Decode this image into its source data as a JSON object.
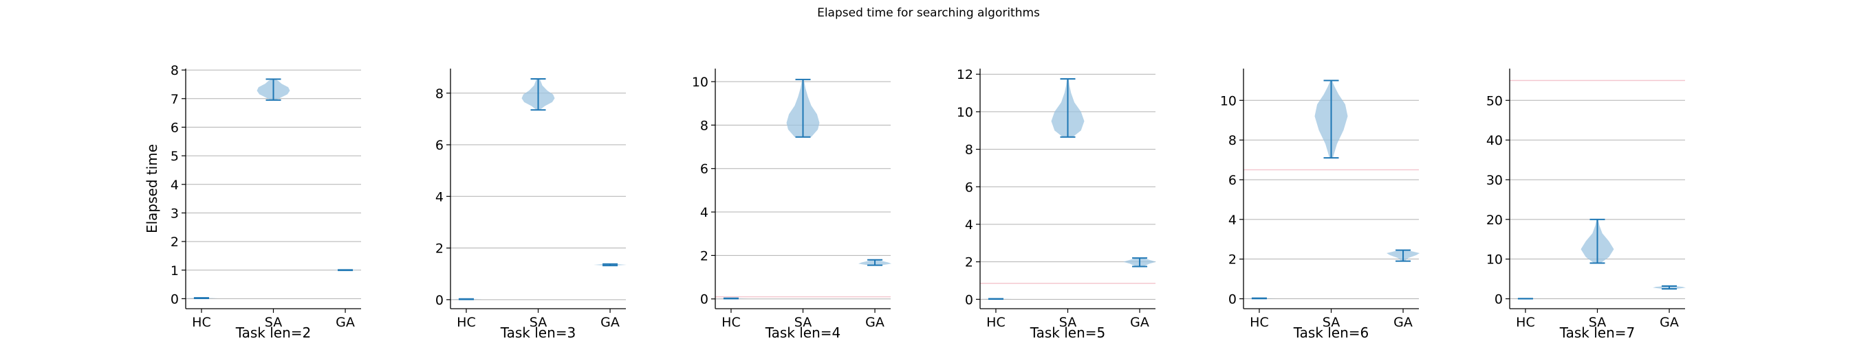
{
  "figure": {
    "title": "Elapsed time for searching algorithms"
  },
  "colors": {
    "violin_fill": "#9ec4e0",
    "violin_line": "#1f77b4",
    "grid": "#b0b0b0",
    "ref_line": "#f4c7cf"
  },
  "chart_data": [
    {
      "type": "violin",
      "xlabel": "Task len=2",
      "ylabel": "Elapsed time",
      "categories": [
        "HC",
        "SA",
        "GA"
      ],
      "ylim": [
        -0.35,
        8.05
      ],
      "yticks": [
        0,
        1,
        2,
        3,
        4,
        5,
        6,
        7,
        8
      ],
      "grid": true,
      "ref_lines": [],
      "violins": [
        {
          "category": "HC",
          "min": 0.01,
          "max": 0.03,
          "shape": [
            [
              0.01,
              0.3
            ],
            [
              0.02,
              1.0
            ],
            [
              0.03,
              0.3
            ]
          ]
        },
        {
          "category": "SA",
          "min": 6.95,
          "max": 7.68,
          "shape": [
            [
              6.95,
              0.15
            ],
            [
              7.05,
              0.5
            ],
            [
              7.15,
              0.85
            ],
            [
              7.28,
              1.0
            ],
            [
              7.4,
              0.9
            ],
            [
              7.52,
              0.5
            ],
            [
              7.62,
              0.3
            ],
            [
              7.68,
              0.1
            ]
          ]
        },
        {
          "category": "GA",
          "min": 0.99,
          "max": 1.01,
          "shape": [
            [
              0.99,
              0.3
            ],
            [
              1.0,
              1.0
            ],
            [
              1.01,
              0.3
            ]
          ]
        }
      ]
    },
    {
      "type": "violin",
      "xlabel": "Task len=3",
      "ylabel": "",
      "categories": [
        "HC",
        "SA",
        "GA"
      ],
      "ylim": [
        -0.35,
        8.95
      ],
      "yticks": [
        0,
        2,
        4,
        6,
        8
      ],
      "grid": true,
      "ref_lines": [],
      "violins": [
        {
          "category": "HC",
          "min": 0.01,
          "max": 0.03,
          "shape": [
            [
              0.01,
              0.3
            ],
            [
              0.02,
              1.0
            ],
            [
              0.03,
              0.3
            ]
          ]
        },
        {
          "category": "SA",
          "min": 7.35,
          "max": 8.55,
          "shape": [
            [
              7.35,
              0.1
            ],
            [
              7.5,
              0.4
            ],
            [
              7.65,
              0.85
            ],
            [
              7.8,
              1.0
            ],
            [
              7.95,
              0.9
            ],
            [
              8.1,
              0.55
            ],
            [
              8.3,
              0.25
            ],
            [
              8.55,
              0.1
            ]
          ]
        },
        {
          "category": "GA",
          "min": 1.32,
          "max": 1.38,
          "shape": [
            [
              1.32,
              0.3
            ],
            [
              1.35,
              1.0
            ],
            [
              1.38,
              0.3
            ]
          ]
        }
      ]
    },
    {
      "type": "violin",
      "xlabel": "Task len=4",
      "ylabel": "",
      "categories": [
        "HC",
        "SA",
        "GA"
      ],
      "ylim": [
        -0.45,
        10.6
      ],
      "yticks": [
        0,
        2,
        4,
        6,
        8,
        10
      ],
      "grid": true,
      "ref_lines": [
        0.1
      ],
      "violins": [
        {
          "category": "HC",
          "min": 0.01,
          "max": 0.03,
          "shape": [
            [
              0.01,
              0.3
            ],
            [
              0.02,
              1.0
            ],
            [
              0.03,
              0.3
            ]
          ]
        },
        {
          "category": "SA",
          "min": 7.45,
          "max": 10.1,
          "shape": [
            [
              7.45,
              0.5
            ],
            [
              7.8,
              0.9
            ],
            [
              8.1,
              1.0
            ],
            [
              8.5,
              0.85
            ],
            [
              8.9,
              0.5
            ],
            [
              9.3,
              0.3
            ],
            [
              9.7,
              0.15
            ],
            [
              10.1,
              0.05
            ]
          ]
        },
        {
          "category": "GA",
          "min": 1.55,
          "max": 1.8,
          "shape": [
            [
              1.55,
              0.4
            ],
            [
              1.62,
              1.0
            ],
            [
              1.68,
              0.8
            ],
            [
              1.75,
              0.4
            ],
            [
              1.8,
              0.2
            ]
          ]
        }
      ]
    },
    {
      "type": "violin",
      "xlabel": "Task len=5",
      "ylabel": "",
      "categories": [
        "HC",
        "SA",
        "GA"
      ],
      "ylim": [
        -0.5,
        12.3
      ],
      "yticks": [
        0,
        2,
        4,
        6,
        8,
        10,
        12
      ],
      "grid": true,
      "ref_lines": [
        0.85
      ],
      "violins": [
        {
          "category": "HC",
          "min": 0.01,
          "max": 0.03,
          "shape": [
            [
              0.01,
              0.3
            ],
            [
              0.02,
              1.0
            ],
            [
              0.03,
              0.3
            ]
          ]
        },
        {
          "category": "SA",
          "min": 8.65,
          "max": 11.75,
          "shape": [
            [
              8.65,
              0.3
            ],
            [
              9.0,
              0.8
            ],
            [
              9.5,
              1.0
            ],
            [
              10.0,
              0.8
            ],
            [
              10.5,
              0.4
            ],
            [
              11.0,
              0.2
            ],
            [
              11.4,
              0.1
            ],
            [
              11.75,
              0.05
            ]
          ]
        },
        {
          "category": "GA",
          "min": 1.75,
          "max": 2.2,
          "shape": [
            [
              1.75,
              0.2
            ],
            [
              1.9,
              0.6
            ],
            [
              2.0,
              1.0
            ],
            [
              2.1,
              0.6
            ],
            [
              2.2,
              0.2
            ]
          ]
        }
      ]
    },
    {
      "type": "violin",
      "xlabel": "Task len=6",
      "ylabel": "",
      "categories": [
        "HC",
        "SA",
        "GA"
      ],
      "ylim": [
        -0.5,
        11.6
      ],
      "yticks": [
        0,
        2,
        4,
        6,
        8,
        10
      ],
      "grid": true,
      "ref_lines": [
        6.5
      ],
      "violins": [
        {
          "category": "HC",
          "min": 0.01,
          "max": 0.03,
          "shape": [
            [
              0.01,
              0.3
            ],
            [
              0.02,
              1.0
            ],
            [
              0.03,
              0.3
            ]
          ]
        },
        {
          "category": "SA",
          "min": 7.1,
          "max": 11.0,
          "shape": [
            [
              7.1,
              0.1
            ],
            [
              7.8,
              0.35
            ],
            [
              8.5,
              0.75
            ],
            [
              9.2,
              1.0
            ],
            [
              9.8,
              0.85
            ],
            [
              10.3,
              0.45
            ],
            [
              10.7,
              0.2
            ],
            [
              11.0,
              0.05
            ]
          ]
        },
        {
          "category": "GA",
          "min": 1.9,
          "max": 2.45,
          "shape": [
            [
              1.9,
              0.1
            ],
            [
              2.05,
              0.3
            ],
            [
              2.2,
              0.8
            ],
            [
              2.3,
              1.0
            ],
            [
              2.4,
              0.5
            ],
            [
              2.45,
              0.2
            ]
          ]
        }
      ]
    },
    {
      "type": "violin",
      "xlabel": "Task len=7",
      "ylabel": "",
      "categories": [
        "HC",
        "SA",
        "GA"
      ],
      "ylim": [
        -2.5,
        58
      ],
      "yticks": [
        0,
        10,
        20,
        30,
        40,
        50
      ],
      "grid": true,
      "ref_lines": [
        55
      ],
      "violins": [
        {
          "category": "HC",
          "min": 0.01,
          "max": 0.05,
          "shape": [
            [
              0.01,
              0.3
            ],
            [
              0.03,
              1.0
            ],
            [
              0.05,
              0.3
            ]
          ]
        },
        {
          "category": "SA",
          "min": 9.0,
          "max": 20.0,
          "shape": [
            [
              9.0,
              0.2
            ],
            [
              10.5,
              0.7
            ],
            [
              12.5,
              1.0
            ],
            [
              14.5,
              0.7
            ],
            [
              16.5,
              0.3
            ],
            [
              18.5,
              0.12
            ],
            [
              20.0,
              0.05
            ]
          ]
        },
        {
          "category": "GA",
          "min": 2.5,
          "max": 3.2,
          "shape": [
            [
              2.5,
              0.4
            ],
            [
              2.8,
              1.0
            ],
            [
              3.0,
              0.8
            ],
            [
              3.2,
              0.3
            ]
          ]
        }
      ]
    }
  ]
}
